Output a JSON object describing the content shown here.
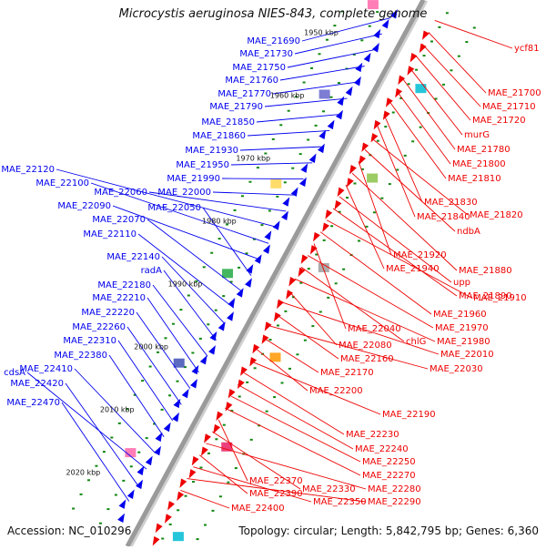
{
  "title": "Microcystis aeruginosa NIES-843, complete genome",
  "footer": {
    "accession": "Accession: NC_010296",
    "summary": "Topology: circular; Length: 5,842,795 bp; Genes: 6,360"
  },
  "colors": {
    "forward": "#0000ee",
    "reverse": "#ee0000",
    "backbone": "#9a9a9a",
    "tick": "#118811"
  },
  "kbp_ticks": [
    "1950 kbp",
    "1960 kbp",
    "1970 kbp",
    "1980 kbp",
    "1990 kbp",
    "2000 kbp",
    "2010 kbp",
    "2020 kbp"
  ],
  "left_labels": [
    "MAE_21690",
    "MAE_21730",
    "MAE_21750",
    "MAE_21760",
    "MAE_21770",
    "MAE_21790",
    "MAE_21850",
    "MAE_21860",
    "MAE_21930",
    "MAE_21950",
    "MAE_21990",
    "MAE_22000",
    "MAE_22060",
    "MAE_22120",
    "MAE_22100",
    "MAE_22090",
    "MAE_22050",
    "MAE_22070",
    "MAE_22110",
    "MAE_22140",
    "radA",
    "MAE_22180",
    "MAE_22210",
    "MAE_22220",
    "MAE_22260",
    "MAE_22310",
    "MAE_22380",
    "MAE_22410",
    "cdsA",
    "MAE_22420",
    "MAE_22470"
  ],
  "right_labels": [
    "ycf81",
    "MAE_21700",
    "MAE_21710",
    "MAE_21720",
    "murG",
    "MAE_21780",
    "MAE_21800",
    "MAE_21810",
    "MAE_21830",
    "MAE_21840",
    "MAE_21820",
    "ndbA",
    "MAE_21920",
    "MAE_21880",
    "MAE_21940",
    "upp",
    "MAE_21890",
    "MAE_21910",
    "MAE_21960",
    "MAE_22040",
    "MAE_21970",
    "chlG",
    "MAE_21980",
    "MAE_22080",
    "MAE_22010",
    "MAE_22160",
    "MAE_22030",
    "MAE_22170",
    "MAE_22200",
    "MAE_22190",
    "MAE_22230",
    "MAE_22240",
    "MAE_22250",
    "MAE_22270",
    "MAE_22370",
    "MAE_22330",
    "MAE_22280",
    "MAE_22390",
    "MAE_22350",
    "MAE_22290",
    "MAE_22400"
  ]
}
